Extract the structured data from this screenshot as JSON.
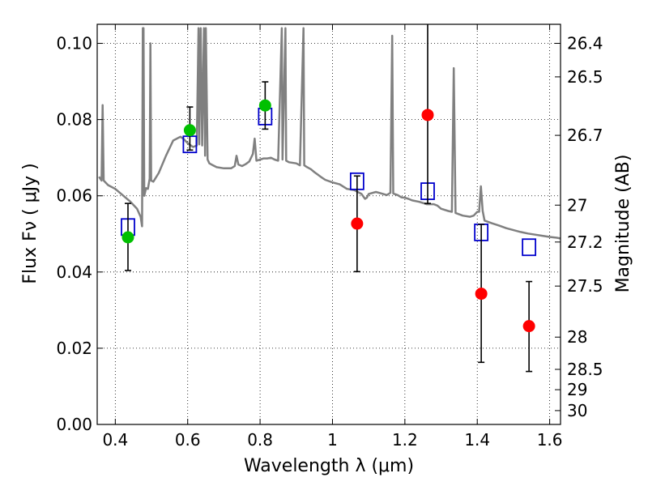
{
  "chart_data": {
    "type": "scatter",
    "title": "",
    "xlabel": "Wavelength  λ (μm)",
    "ylabel": "Flux  Fν  ( μJy )",
    "y2label": "Magnitude (AB)",
    "xlim": [
      0.35,
      1.63
    ],
    "ylim": [
      0.0,
      0.105
    ],
    "grid": true,
    "x_ticks": [
      0.4,
      0.6,
      0.8,
      1.0,
      1.2,
      1.4,
      1.6
    ],
    "x_tick_labels": [
      "0.4",
      "0.6",
      "0.8",
      "1",
      "1.2",
      "1.4",
      "1.6"
    ],
    "y_ticks": [
      0.0,
      0.02,
      0.04,
      0.06,
      0.08,
      0.1
    ],
    "y_tick_labels": [
      "0.00",
      "0.02",
      "0.04",
      "0.06",
      "0.08",
      "0.10"
    ],
    "magnitude_ticks": [
      {
        "label": "26.4",
        "mag": 26.4
      },
      {
        "label": "26.5",
        "mag": 26.5
      },
      {
        "label": "26.7",
        "mag": 26.7
      },
      {
        "label": "27",
        "mag": 27.0
      },
      {
        "label": "27.2",
        "mag": 27.2
      },
      {
        "label": "27.5",
        "mag": 27.5
      },
      {
        "label": "28",
        "mag": 28.0
      },
      {
        "label": "28.5",
        "mag": 28.5
      },
      {
        "label": "29",
        "mag": 29.0
      },
      {
        "label": "30",
        "mag": 30.0
      }
    ],
    "colors": {
      "model": "#808080",
      "detection": "#00c000",
      "photometry": "#ff0000",
      "model_band": "#0000cc",
      "errorbar": "#000000",
      "grid": "#000000"
    },
    "series": [
      {
        "kind": "line",
        "points": [
          [
            0.355,
            0.065
          ],
          [
            0.362,
            0.064
          ],
          [
            0.365,
            0.0838
          ],
          [
            0.368,
            0.064
          ],
          [
            0.38,
            0.0628
          ],
          [
            0.4,
            0.0618
          ],
          [
            0.42,
            0.0602
          ],
          [
            0.44,
            0.0586
          ],
          [
            0.46,
            0.0566
          ],
          [
            0.47,
            0.0545
          ],
          [
            0.474,
            0.052
          ],
          [
            0.476,
            0.104
          ],
          [
            0.478,
            0.104
          ],
          [
            0.48,
            0.06
          ],
          [
            0.485,
            0.062
          ],
          [
            0.49,
            0.0618
          ],
          [
            0.495,
            0.0645
          ],
          [
            0.497,
            0.1
          ],
          [
            0.499,
            0.064
          ],
          [
            0.505,
            0.0637
          ],
          [
            0.52,
            0.066
          ],
          [
            0.54,
            0.0705
          ],
          [
            0.56,
            0.0745
          ],
          [
            0.58,
            0.0755
          ],
          [
            0.59,
            0.0748
          ],
          [
            0.6,
            0.0738
          ],
          [
            0.615,
            0.0728
          ],
          [
            0.625,
            0.0732
          ],
          [
            0.63,
            0.104
          ],
          [
            0.632,
            0.0735
          ],
          [
            0.636,
            0.104
          ],
          [
            0.64,
            0.0732
          ],
          [
            0.645,
            0.104
          ],
          [
            0.648,
            0.0705
          ],
          [
            0.65,
            0.104
          ],
          [
            0.655,
            0.0695
          ],
          [
            0.66,
            0.0685
          ],
          [
            0.67,
            0.068
          ],
          [
            0.68,
            0.0675
          ],
          [
            0.7,
            0.0672
          ],
          [
            0.72,
            0.0672
          ],
          [
            0.73,
            0.0678
          ],
          [
            0.735,
            0.0705
          ],
          [
            0.74,
            0.0682
          ],
          [
            0.75,
            0.0678
          ],
          [
            0.76,
            0.0683
          ],
          [
            0.77,
            0.069
          ],
          [
            0.78,
            0.071
          ],
          [
            0.785,
            0.075
          ],
          [
            0.79,
            0.0692
          ],
          [
            0.8,
            0.0695
          ],
          [
            0.81,
            0.0698
          ],
          [
            0.82,
            0.0698
          ],
          [
            0.83,
            0.07
          ],
          [
            0.84,
            0.0695
          ],
          [
            0.85,
            0.0692
          ],
          [
            0.86,
            0.104
          ],
          [
            0.862,
            0.0695
          ],
          [
            0.87,
            0.104
          ],
          [
            0.872,
            0.0692
          ],
          [
            0.88,
            0.0688
          ],
          [
            0.9,
            0.0685
          ],
          [
            0.91,
            0.068
          ],
          [
            0.92,
            0.104
          ],
          [
            0.922,
            0.068
          ],
          [
            0.93,
            0.0675
          ],
          [
            0.94,
            0.067
          ],
          [
            0.95,
            0.0662
          ],
          [
            0.96,
            0.0655
          ],
          [
            0.97,
            0.0648
          ],
          [
            0.98,
            0.0642
          ],
          [
            1.0,
            0.0635
          ],
          [
            1.02,
            0.063
          ],
          [
            1.04,
            0.0618
          ],
          [
            1.06,
            0.0615
          ],
          [
            1.08,
            0.0605
          ],
          [
            1.09,
            0.0592
          ],
          [
            1.095,
            0.0595
          ],
          [
            1.1,
            0.0605
          ],
          [
            1.12,
            0.061
          ],
          [
            1.14,
            0.0605
          ],
          [
            1.15,
            0.0602
          ],
          [
            1.16,
            0.0608
          ],
          [
            1.165,
            0.102
          ],
          [
            1.168,
            0.0606
          ],
          [
            1.18,
            0.0602
          ],
          [
            1.19,
            0.0596
          ],
          [
            1.2,
            0.0595
          ],
          [
            1.21,
            0.0592
          ],
          [
            1.22,
            0.0588
          ],
          [
            1.24,
            0.0584
          ],
          [
            1.26,
            0.0578
          ],
          [
            1.28,
            0.0578
          ],
          [
            1.29,
            0.0574
          ],
          [
            1.3,
            0.0566
          ],
          [
            1.32,
            0.056
          ],
          [
            1.33,
            0.0558
          ],
          [
            1.335,
            0.0935
          ],
          [
            1.34,
            0.0555
          ],
          [
            1.36,
            0.0548
          ],
          [
            1.38,
            0.0545
          ],
          [
            1.39,
            0.0548
          ],
          [
            1.4,
            0.0558
          ],
          [
            1.405,
            0.0558
          ],
          [
            1.41,
            0.0625
          ],
          [
            1.415,
            0.056
          ],
          [
            1.42,
            0.0535
          ],
          [
            1.44,
            0.0528
          ],
          [
            1.46,
            0.0522
          ],
          [
            1.48,
            0.0515
          ],
          [
            1.5,
            0.051
          ],
          [
            1.52,
            0.0505
          ],
          [
            1.54,
            0.0501
          ],
          [
            1.56,
            0.0498
          ],
          [
            1.58,
            0.0495
          ],
          [
            1.6,
            0.0492
          ],
          [
            1.62,
            0.049
          ],
          [
            1.63,
            0.0488
          ]
        ]
      },
      {
        "kind": "squares",
        "points": [
          [
            0.435,
            0.0518
          ],
          [
            0.606,
            0.0735
          ],
          [
            0.814,
            0.0808
          ],
          [
            1.068,
            0.0638
          ],
          [
            1.263,
            0.0612
          ],
          [
            1.411,
            0.0504
          ],
          [
            1.543,
            0.0465
          ]
        ]
      },
      {
        "kind": "circles-green",
        "points": [
          [
            0.435,
            0.0491
          ],
          [
            0.606,
            0.0772
          ],
          [
            0.814,
            0.0837
          ]
        ]
      },
      {
        "kind": "circles-red",
        "points": [
          [
            1.068,
            0.0527
          ],
          [
            1.263,
            0.0812
          ],
          [
            1.411,
            0.0343
          ],
          [
            1.543,
            0.0258
          ]
        ]
      }
    ],
    "errorbars": [
      {
        "x": 0.435,
        "y_low": 0.0404,
        "y_high": 0.058
      },
      {
        "x": 0.606,
        "y_low": 0.072,
        "y_high": 0.0833
      },
      {
        "x": 0.814,
        "y_low": 0.0775,
        "y_high": 0.0899
      },
      {
        "x": 1.068,
        "y_low": 0.0401,
        "y_high": 0.0652
      },
      {
        "x": 1.263,
        "y_low": 0.058,
        "y_high": 0.105
      },
      {
        "x": 1.411,
        "y_low": 0.0163,
        "y_high": 0.0525
      },
      {
        "x": 1.543,
        "y_low": 0.0139,
        "y_high": 0.0375
      }
    ]
  }
}
